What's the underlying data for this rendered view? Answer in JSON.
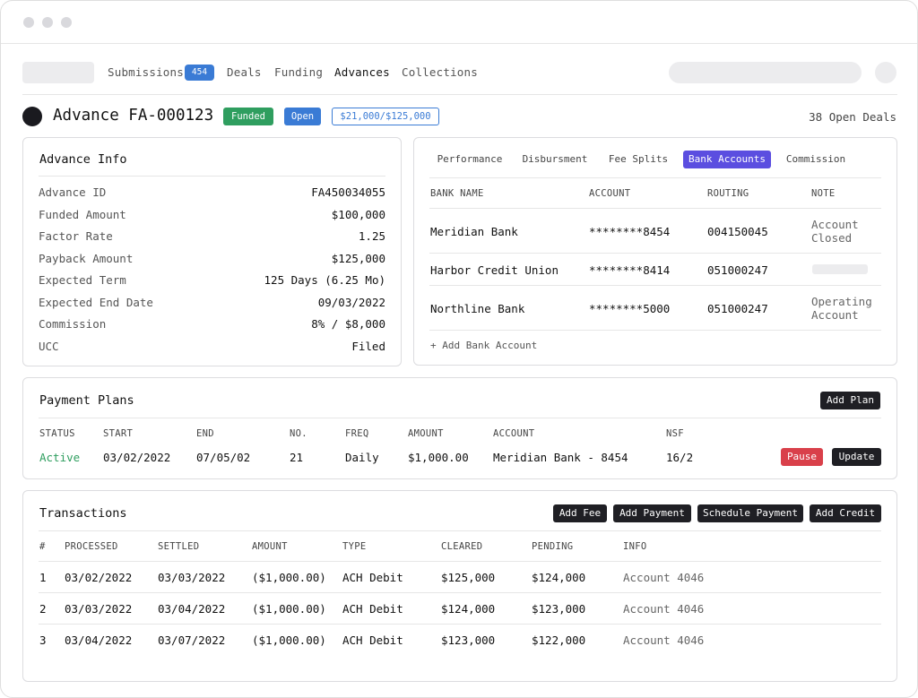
{
  "nav": {
    "items": [
      {
        "label": "Submissions"
      },
      {
        "label": "Deals"
      },
      {
        "label": "Funding"
      },
      {
        "label": "Advances"
      },
      {
        "label": "Collections"
      }
    ],
    "submissions_badge": "454",
    "active": "Advances"
  },
  "advance": {
    "title": "Advance FA-000123",
    "status_funded": "Funded",
    "status_open": "Open",
    "amount_pill": "$21,000/$125,000",
    "open_deals": "38 Open Deals"
  },
  "advance_info": {
    "title": "Advance Info",
    "rows": [
      {
        "label": "Advance ID",
        "value": "FA450034055"
      },
      {
        "label": "Funded Amount",
        "value": "$100,000"
      },
      {
        "label": "Factor Rate",
        "value": "1.25"
      },
      {
        "label": "Payback Amount",
        "value": "$125,000"
      },
      {
        "label": "Expected Term",
        "value": "125 Days (6.25 Mo)"
      },
      {
        "label": "Expected End Date",
        "value": "09/03/2022"
      },
      {
        "label": "Commission",
        "value": "8% / $8,000"
      },
      {
        "label": "UCC",
        "value": "Filed"
      }
    ]
  },
  "details": {
    "tabs": [
      {
        "label": "Performance"
      },
      {
        "label": "Disbursment"
      },
      {
        "label": "Fee Splits"
      },
      {
        "label": "Bank Accounts"
      },
      {
        "label": "Commission"
      }
    ],
    "active_tab": "Bank Accounts",
    "columns": [
      "BANK NAME",
      "ACCOUNT",
      "ROUTING",
      "NOTE"
    ],
    "rows": [
      {
        "bank": "Meridian Bank",
        "account": "********8454",
        "routing": "004150045",
        "note": "Account Closed"
      },
      {
        "bank": "Harbor Credit Union",
        "account": "********8414",
        "routing": "051000247",
        "note": ""
      },
      {
        "bank": "Northline Bank",
        "account": "********5000",
        "routing": "051000247",
        "note": "Operating Account"
      }
    ],
    "add_label": "+ Add Bank Account"
  },
  "payment_plans": {
    "title": "Payment Plans",
    "add_button": "Add Plan",
    "columns": [
      "STATUS",
      "START",
      "END",
      "NO.",
      "FREQ",
      "AMOUNT",
      "ACCOUNT",
      "NSF"
    ],
    "row": {
      "status": "Active",
      "start": "03/02/2022",
      "end": "07/05/02",
      "no": "21",
      "freq": "Daily",
      "amount": "$1,000.00",
      "account": "Meridian Bank - 8454",
      "nsf": "16/2"
    },
    "pause_button": "Pause",
    "update_button": "Update",
    "status_color": "#2f9e5f"
  },
  "transactions": {
    "title": "Transactions",
    "buttons": {
      "add_fee": "Add Fee",
      "add_payment": "Add Payment",
      "schedule_payment": "Schedule Payment",
      "add_credit": "Add Credit"
    },
    "columns": [
      "#",
      "PROCESSED",
      "SETTLED",
      "AMOUNT",
      "TYPE",
      "CLEARED",
      "PENDING",
      "INFO"
    ],
    "rows": [
      {
        "n": "1",
        "processed": "03/02/2022",
        "settled": "03/03/2022",
        "amount": "($1,000.00)",
        "type": "ACH Debit",
        "cleared": "$125,000",
        "pending": "$124,000",
        "info": "Account 4046"
      },
      {
        "n": "2",
        "processed": "03/03/2022",
        "settled": "03/04/2022",
        "amount": "($1,000.00)",
        "type": "ACH Debit",
        "cleared": "$124,000",
        "pending": "$123,000",
        "info": "Account 4046"
      },
      {
        "n": "3",
        "processed": "03/04/2022",
        "settled": "03/07/2022",
        "amount": "($1,000.00)",
        "type": "ACH Debit",
        "cleared": "$123,000",
        "pending": "$122,000",
        "info": "Account 4046"
      }
    ]
  },
  "colors": {
    "accent_blue": "#3a7bd5",
    "accent_purple": "#5b4ee0",
    "success_green": "#2f9e5f",
    "danger_red": "#d9404a",
    "dark_button": "#1f1f24"
  }
}
